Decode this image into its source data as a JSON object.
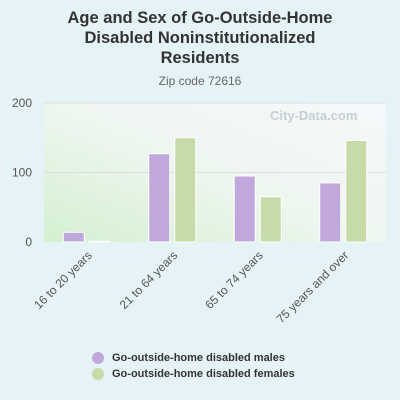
{
  "header": {
    "title_line1": "Age and Sex of Go-Outside-Home",
    "title_line2": "Disabled Noninstitutionalized",
    "title_line3": "Residents",
    "subtitle": "Zip code 72616"
  },
  "watermark": "City-Data.com",
  "colors": {
    "males": "#c0a8dc",
    "females": "#c6dba8",
    "grid": "#dddddd",
    "axis_text": "#555555"
  },
  "chart_data": {
    "type": "bar",
    "title": "Age and Sex of Go-Outside-Home Disabled Noninstitutionalized Residents",
    "subtitle": "Zip code 72616",
    "categories": [
      "16 to 20 years",
      "21 to 64 years",
      "65 to 74 years",
      "75 years and over"
    ],
    "series": [
      {
        "name": "Go-outside-home disabled males",
        "values": [
          14,
          127,
          95,
          85
        ]
      },
      {
        "name": "Go-outside-home disabled females",
        "values": [
          1,
          150,
          65,
          146
        ]
      }
    ],
    "yticks": [
      0,
      100,
      200
    ],
    "ylim": [
      0,
      200
    ],
    "grid": true,
    "legend_position": "bottom"
  }
}
